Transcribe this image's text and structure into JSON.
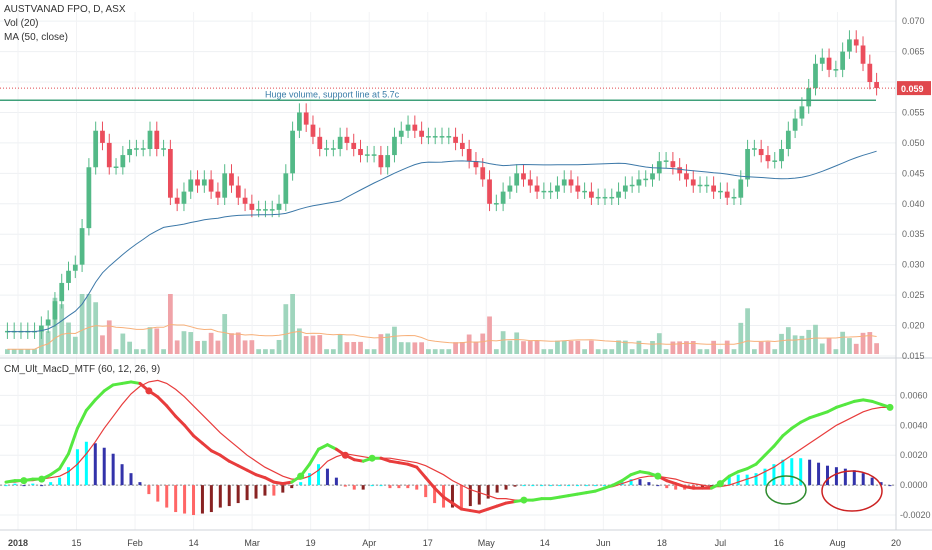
{
  "header": {
    "symbol_line": "AUSTVANAD FPO, D, ASX",
    "vol_label": "Vol (20)",
    "ma_label": "MA (50, close)",
    "indicator_label": "CM_Ult_MacD_MTF (60, 12, 26, 9)"
  },
  "annotation": {
    "text": "Huge volume, support line at 5.7c",
    "level": 0.057
  },
  "last_price": {
    "label": "0.059",
    "value": 0.059,
    "color": "#e0474c"
  },
  "colors": {
    "up": "#53b987",
    "down": "#eb4d5c",
    "vol_up": "#9fd5bd",
    "vol_down": "#f0a3a8",
    "ma": "#3c78a8",
    "vol_ma": "#f7b07a",
    "support_line": "#3fa07a",
    "macd_fast": "#55e840",
    "macd_slow": "#e83c3c",
    "hist_up_strong": "#00ffff",
    "hist_up_weak": "#3333aa",
    "hist_down_strong": "#ff6666",
    "hist_down_weak": "#882222",
    "circle_green": "#2e8b2e",
    "circle_red": "#cc2222"
  },
  "chart_data": [
    {
      "type": "candlestick",
      "title": "AUSTVANAD FPO, D, ASX",
      "y_ticks": [
        "0.015",
        "0.020",
        "0.025",
        "0.030",
        "0.035",
        "0.040",
        "0.045",
        "0.050",
        "0.055",
        "0.060",
        "0.065",
        "0.070"
      ],
      "ylim": [
        0.015,
        0.0715
      ],
      "x_ticks": [
        "2018",
        "15",
        "Feb",
        "14",
        "Mar",
        "19",
        "Apr",
        "17",
        "May",
        "14",
        "Jun",
        "18",
        "Jul",
        "16",
        "Aug",
        "20"
      ],
      "closes": [
        0.019,
        0.019,
        0.019,
        0.019,
        0.019,
        0.02,
        0.021,
        0.024,
        0.027,
        0.029,
        0.03,
        0.036,
        0.046,
        0.052,
        0.05,
        0.046,
        0.046,
        0.048,
        0.049,
        0.049,
        0.049,
        0.052,
        0.049,
        0.049,
        0.041,
        0.04,
        0.042,
        0.044,
        0.043,
        0.044,
        0.042,
        0.041,
        0.045,
        0.043,
        0.041,
        0.04,
        0.039,
        0.039,
        0.039,
        0.039,
        0.04,
        0.045,
        0.052,
        0.055,
        0.053,
        0.051,
        0.049,
        0.049,
        0.049,
        0.051,
        0.05,
        0.049,
        0.048,
        0.048,
        0.048,
        0.046,
        0.048,
        0.051,
        0.052,
        0.053,
        0.052,
        0.051,
        0.051,
        0.051,
        0.051,
        0.051,
        0.05,
        0.049,
        0.047,
        0.046,
        0.044,
        0.04,
        0.04,
        0.042,
        0.043,
        0.045,
        0.044,
        0.043,
        0.042,
        0.042,
        0.042,
        0.043,
        0.044,
        0.043,
        0.042,
        0.042,
        0.041,
        0.041,
        0.041,
        0.041,
        0.042,
        0.043,
        0.043,
        0.044,
        0.044,
        0.045,
        0.047,
        0.047,
        0.046,
        0.045,
        0.044,
        0.043,
        0.043,
        0.043,
        0.042,
        0.042,
        0.041,
        0.041,
        0.044,
        0.049,
        0.049,
        0.048,
        0.047,
        0.047,
        0.049,
        0.052,
        0.054,
        0.056,
        0.059,
        0.063,
        0.064,
        0.062,
        0.062,
        0.065,
        0.067,
        0.066,
        0.063,
        0.06,
        0.059
      ],
      "volume_ylim": [
        0,
        0.02
      ],
      "volume_note": "Relative volume bars shown in lower band of the price pane (volume axis not labeled)"
    },
    {
      "type": "line",
      "title": "CM_Ult_MacD_MTF (60, 12, 26, 9)",
      "y_ticks": [
        "0.0060",
        "0.0040",
        "0.0020",
        "0.0000",
        "-0.0020"
      ],
      "ylim": [
        -0.003,
        0.0085
      ],
      "series": [
        {
          "name": "MACD",
          "values": [
            0.0002,
            0.0003,
            0.0003,
            0.0004,
            0.0004,
            0.0007,
            0.0011,
            0.0021,
            0.0038,
            0.005,
            0.0057,
            0.0063,
            0.0067,
            0.0068,
            0.0069,
            0.0068,
            0.0063,
            0.0059,
            0.0053,
            0.0046,
            0.004,
            0.0033,
            0.0028,
            0.0023,
            0.002,
            0.0016,
            0.0013,
            0.001,
            0.0007,
            0.0005,
            0.0002,
            0.0001,
            0.0002,
            0.0006,
            0.0014,
            0.0024,
            0.0027,
            0.0024,
            0.002,
            0.0017,
            0.0016,
            0.0018,
            0.0018,
            0.0016,
            0.0015,
            0.0014,
            0.0012,
            0.0005,
            -0.0002,
            -0.0008,
            -0.0012,
            -0.0016,
            -0.0017,
            -0.0018,
            -0.0016,
            -0.0014,
            -0.0012,
            -0.0011,
            -0.001,
            -0.001,
            -0.0009,
            -0.0009,
            -0.0008,
            -0.0007,
            -0.0006,
            -0.0005,
            -0.0004,
            -0.0002,
            0,
            0.0003,
            0.0007,
            0.0009,
            0.0008,
            0.0006,
            0.0003,
            0.0001,
            -0.0001,
            -0.0002,
            -0.0002,
            -0.0002,
            0.0001,
            0.0006,
            0.0009,
            0.0011,
            0.0014,
            0.002,
            0.0026,
            0.0033,
            0.0038,
            0.0042,
            0.0045,
            0.0047,
            0.0049,
            0.0052,
            0.0054,
            0.0056,
            0.0057,
            0.0056,
            0.0054,
            0.0052
          ]
        },
        {
          "name": "Signal",
          "values": [
            0.0002,
            0.0002,
            0.0003,
            0.0003,
            0.0004,
            0.0005,
            0.0006,
            0.0009,
            0.0014,
            0.0021,
            0.0029,
            0.0038,
            0.0046,
            0.0054,
            0.0061,
            0.0066,
            0.0069,
            0.007,
            0.0068,
            0.0064,
            0.0059,
            0.0053,
            0.0047,
            0.0041,
            0.0035,
            0.003,
            0.0025,
            0.002,
            0.0016,
            0.0012,
            0.0009,
            0.0006,
            0.0004,
            0.0004,
            0.0006,
            0.001,
            0.0016,
            0.0019,
            0.0021,
            0.002,
            0.0019,
            0.0018,
            0.0018,
            0.0018,
            0.0017,
            0.0016,
            0.0015,
            0.0013,
            0.001,
            0.0007,
            0.0003,
            0,
            -0.0003,
            -0.0005,
            -0.0007,
            -0.0009,
            -0.0009,
            -0.001,
            -0.001,
            -0.001,
            -0.0009,
            -0.0009,
            -0.0008,
            -0.0007,
            -0.0006,
            -0.0005,
            -0.0004,
            -0.0002,
            -0.0001,
            0.0001,
            0.0003,
            0.0005,
            0.0006,
            0.0006,
            0.0005,
            0.0004,
            0.0002,
            0.0001,
            0,
            -0.0001,
            -0.0001,
            0,
            0.0002,
            0.0004,
            0.0006,
            0.0009,
            0.0012,
            0.0016,
            0.002,
            0.0024,
            0.0028,
            0.0032,
            0.0036,
            0.004,
            0.0043,
            0.0046,
            0.0049,
            0.0051,
            0.0052,
            0.0052
          ]
        }
      ]
    }
  ]
}
